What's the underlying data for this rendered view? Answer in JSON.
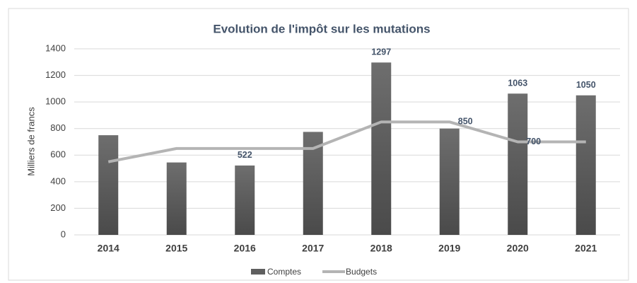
{
  "chart_data": {
    "type": "bar-line",
    "title": "Evolution de l'impôt sur les mutations",
    "y_label": "Milliers de francs",
    "categories": [
      "2014",
      "2015",
      "2016",
      "2017",
      "2018",
      "2019",
      "2020",
      "2021"
    ],
    "series": [
      {
        "name": "Comptes",
        "type": "bar",
        "color": "#5f5f5f",
        "values": [
          750,
          545,
          522,
          775,
          1297,
          800,
          1063,
          1050
        ],
        "value_labels": [
          null,
          null,
          "522",
          null,
          "1297",
          null,
          "1063",
          "1050"
        ]
      },
      {
        "name": "Budgets",
        "type": "line",
        "color": "#b4b4b4",
        "values": [
          550,
          650,
          650,
          650,
          850,
          850,
          700,
          700
        ],
        "value_labels": [
          null,
          null,
          null,
          null,
          null,
          "850",
          "700",
          null
        ]
      }
    ],
    "ylim": [
      0,
      1400
    ],
    "yticks": [
      0,
      200,
      400,
      600,
      800,
      1000,
      1200,
      1400
    ],
    "grid": true,
    "legend": "bottom"
  }
}
